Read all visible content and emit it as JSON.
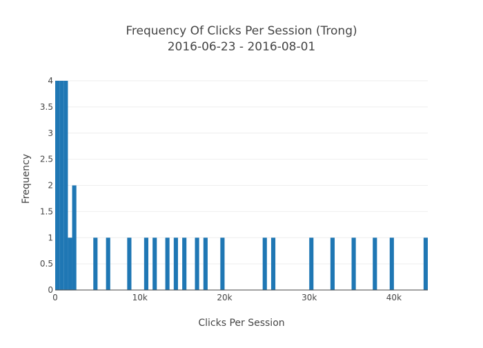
{
  "chart_data": {
    "type": "bar",
    "title_line1": "Frequency Of Clicks Per Session (Trong)",
    "title_line2": "2016-06-23 - 2016-08-01",
    "xlabel": "Clicks Per Session",
    "ylabel": "Frequency",
    "xlim": [
      0,
      44000
    ],
    "ylim": [
      0,
      4
    ],
    "bin_width": 500,
    "x_ticks": [
      0,
      10000,
      20000,
      30000,
      40000
    ],
    "x_tick_labels": [
      "0",
      "10k",
      "20k",
      "30k",
      "40k"
    ],
    "y_ticks": [
      0,
      0.5,
      1,
      1.5,
      2,
      2.5,
      3,
      3.5,
      4
    ],
    "y_tick_labels": [
      "0",
      "0.5",
      "1",
      "1.5",
      "2",
      "2.5",
      "3",
      "3.5",
      "4"
    ],
    "grid": true,
    "bar_color": "#1f77b4",
    "bins": [
      {
        "x0": 0,
        "count": 4
      },
      {
        "x0": 500,
        "count": 4
      },
      {
        "x0": 1000,
        "count": 4
      },
      {
        "x0": 1500,
        "count": 1
      },
      {
        "x0": 2000,
        "count": 2
      },
      {
        "x0": 4500,
        "count": 1
      },
      {
        "x0": 6000,
        "count": 1
      },
      {
        "x0": 8500,
        "count": 1
      },
      {
        "x0": 10500,
        "count": 1
      },
      {
        "x0": 11500,
        "count": 1
      },
      {
        "x0": 13000,
        "count": 1
      },
      {
        "x0": 14000,
        "count": 1
      },
      {
        "x0": 15000,
        "count": 1
      },
      {
        "x0": 16500,
        "count": 1
      },
      {
        "x0": 17500,
        "count": 1
      },
      {
        "x0": 19500,
        "count": 1
      },
      {
        "x0": 24500,
        "count": 1
      },
      {
        "x0": 25500,
        "count": 1
      },
      {
        "x0": 30000,
        "count": 1
      },
      {
        "x0": 32500,
        "count": 1
      },
      {
        "x0": 35000,
        "count": 1
      },
      {
        "x0": 37500,
        "count": 1
      },
      {
        "x0": 39500,
        "count": 1
      },
      {
        "x0": 43500,
        "count": 1
      }
    ]
  }
}
